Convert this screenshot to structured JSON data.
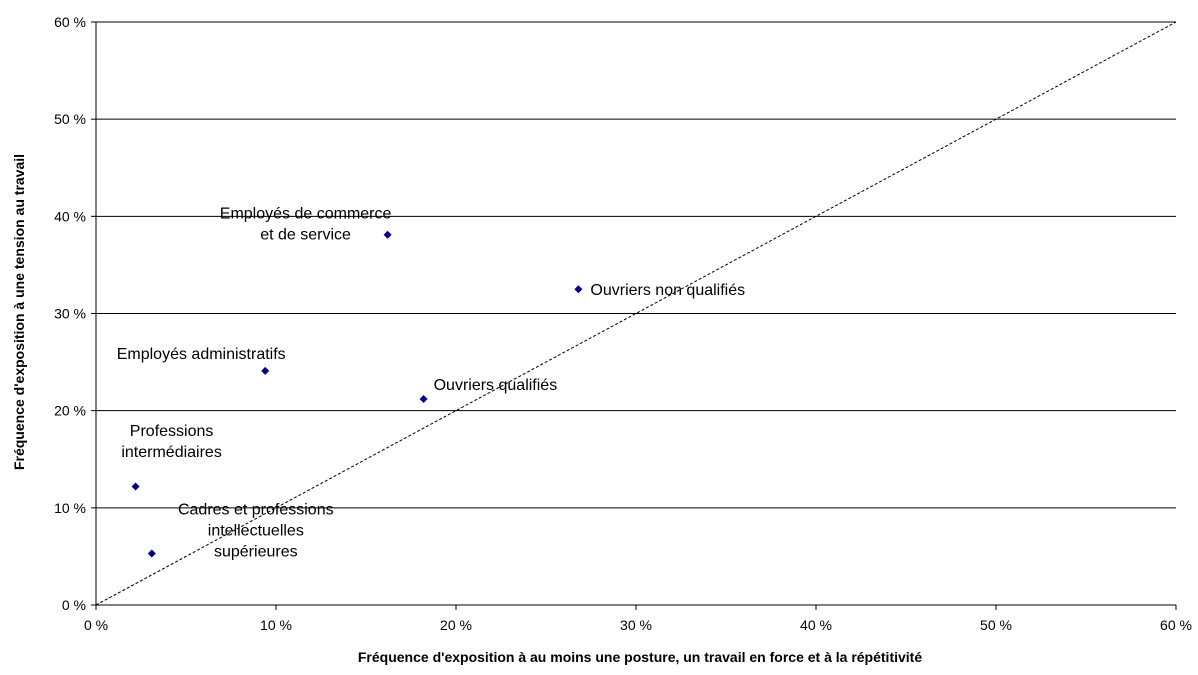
{
  "chart_data": {
    "type": "scatter",
    "title": "",
    "xlabel": "Fréquence d'exposition à au moins une posture, un travail en force et à la répétitivité",
    "ylabel": "Fréquence d'exposition à une tension au travail",
    "xlim": [
      0,
      60
    ],
    "ylim": [
      0,
      60
    ],
    "x_ticks": [
      0,
      10,
      20,
      30,
      40,
      50,
      60
    ],
    "y_ticks": [
      0,
      10,
      20,
      30,
      40,
      50,
      60
    ],
    "x_tick_labels": [
      "0 %",
      "10 %",
      "20 %",
      "30 %",
      "40 %",
      "50 %",
      "60 %"
    ],
    "y_tick_labels": [
      "0 %",
      "10 %",
      "20 %",
      "30 %",
      "40 %",
      "50 %",
      "60 %"
    ],
    "grid": "horizontal",
    "legend": "none",
    "reference_line": {
      "from": [
        0,
        0
      ],
      "to": [
        60,
        60
      ],
      "style": "dotted"
    },
    "marker_color": "#000080",
    "points": [
      {
        "label": [
          "Employés de commerce",
          "et de service"
        ],
        "x": 16.2,
        "y": 38.1
      },
      {
        "label": [
          "Ouvriers non qualifiés"
        ],
        "x": 26.8,
        "y": 32.5
      },
      {
        "label": [
          "Employés administratifs"
        ],
        "x": 9.4,
        "y": 24.1
      },
      {
        "label": [
          "Ouvriers qualifiés"
        ],
        "x": 18.2,
        "y": 21.2
      },
      {
        "label": [
          "Professions",
          "intermédiaires"
        ],
        "x": 2.2,
        "y": 12.2
      },
      {
        "label": [
          "Cadres et professions",
          "intellectuelles",
          "supérieures"
        ],
        "x": 3.1,
        "y": 5.3
      }
    ]
  }
}
